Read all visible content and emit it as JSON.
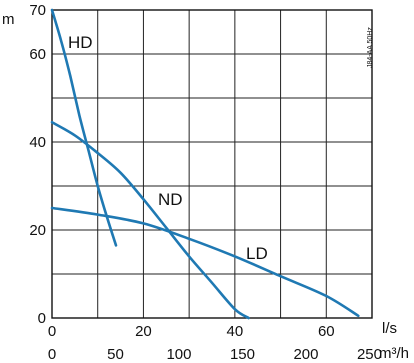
{
  "chart_data": {
    "type": "line",
    "annotation": "J84-AA 50Hz",
    "y_axis": {
      "unit": "m",
      "ticks": [
        0,
        20,
        40,
        60,
        70
      ],
      "range": [
        0,
        70
      ]
    },
    "x_axis_primary": {
      "unit": "l/s",
      "ticks": [
        0,
        20,
        40,
        60
      ],
      "range": [
        0,
        70
      ]
    },
    "x_axis_secondary": {
      "unit": "m³/h",
      "ticks": [
        0,
        50,
        100,
        150,
        200,
        250
      ],
      "range": [
        0,
        252
      ]
    },
    "grid": true,
    "series": [
      {
        "name": "HD",
        "color": "#1f79b3",
        "x": [
          0,
          2,
          4,
          6,
          8,
          10,
          12,
          14
        ],
        "y": [
          70,
          63,
          55,
          46,
          38,
          30,
          23,
          16.5
        ]
      },
      {
        "name": "ND",
        "color": "#1f79b3",
        "x": [
          0,
          5,
          10,
          15,
          20,
          25,
          30,
          35,
          40,
          43
        ],
        "y": [
          44.5,
          41.5,
          37.5,
          33,
          27,
          20.5,
          14,
          8,
          2,
          0
        ]
      },
      {
        "name": "LD",
        "color": "#1f79b3",
        "x": [
          0,
          10,
          20,
          30,
          40,
          50,
          60,
          67
        ],
        "y": [
          25,
          23.5,
          21.5,
          18,
          14,
          9.5,
          5,
          0.5
        ]
      }
    ]
  }
}
